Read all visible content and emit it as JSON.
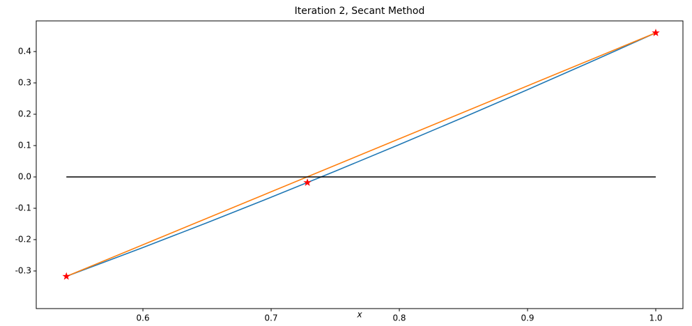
{
  "chart_data": {
    "type": "line",
    "title": "Iteration 2, Secant Method",
    "xlabel": "x",
    "xlim": [
      0.5168,
      1.0212
    ],
    "ylim": [
      -0.42,
      0.4978
    ],
    "xticks": [
      0.6,
      0.7,
      0.8,
      0.9,
      {
        "value": 1,
        "label": "1.0"
      }
    ],
    "yticks": [
      -0.3,
      -0.2,
      -0.1,
      {
        "value": 0,
        "label": "0.0"
      },
      0.1,
      0.2,
      0.3,
      0.4
    ],
    "series": [
      {
        "color": "#1f77b4",
        "linestyle": "solid",
        "marker": "none",
        "x": [
          0.5403,
          0.6,
          0.65,
          0.7,
          0.75,
          0.8,
          0.85,
          0.9,
          0.95,
          1.0
        ],
        "values": [
          -0.3173,
          -0.2253,
          -0.1461,
          -0.0648,
          0.0183,
          0.1033,
          0.19,
          0.2784,
          0.3683,
          0.4597
        ]
      },
      {
        "color": "#ff7f0e",
        "linestyle": "solid",
        "marker": "none",
        "x": [
          0.5403,
          1.0
        ],
        "values": [
          -0.3173,
          0.4597
        ]
      },
      {
        "color": "#000000",
        "linestyle": "solid",
        "marker": "none",
        "x": [
          0.5403,
          1.0
        ],
        "values": [
          0,
          0
        ]
      },
      {
        "color": "#ff0000",
        "linestyle": "none",
        "marker": "star",
        "x": [
          0.5403,
          0.7283,
          1.0
        ],
        "values": [
          -0.3173,
          -0.018,
          0.4597
        ]
      }
    ]
  }
}
